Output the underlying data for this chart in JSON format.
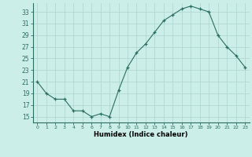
{
  "x": [
    0,
    1,
    2,
    3,
    4,
    5,
    6,
    7,
    8,
    9,
    10,
    11,
    12,
    13,
    14,
    15,
    16,
    17,
    18,
    19,
    20,
    21,
    22,
    23
  ],
  "y": [
    21,
    19,
    18,
    18,
    16,
    16,
    15,
    15.5,
    15,
    19.5,
    23.5,
    26,
    27.5,
    29.5,
    31.5,
    32.5,
    33.5,
    34,
    33.5,
    33,
    29,
    27,
    25.5,
    23.5
  ],
  "line_color": "#2a6e62",
  "marker_color": "#2a6e62",
  "bg_color": "#cceee8",
  "grid_color": "#aad4ce",
  "xlabel": "Humidex (Indice chaleur)",
  "ylabel_ticks": [
    15,
    17,
    19,
    21,
    23,
    25,
    27,
    29,
    31,
    33
  ],
  "xtick_labels": [
    "0",
    "1",
    "2",
    "3",
    "4",
    "5",
    "6",
    "7",
    "8",
    "9",
    "10",
    "11",
    "12",
    "13",
    "14",
    "15",
    "16",
    "17",
    "18",
    "19",
    "20",
    "21",
    "22",
    "23"
  ],
  "xlim": [
    -0.5,
    23.5
  ],
  "ylim": [
    14.0,
    34.5
  ]
}
